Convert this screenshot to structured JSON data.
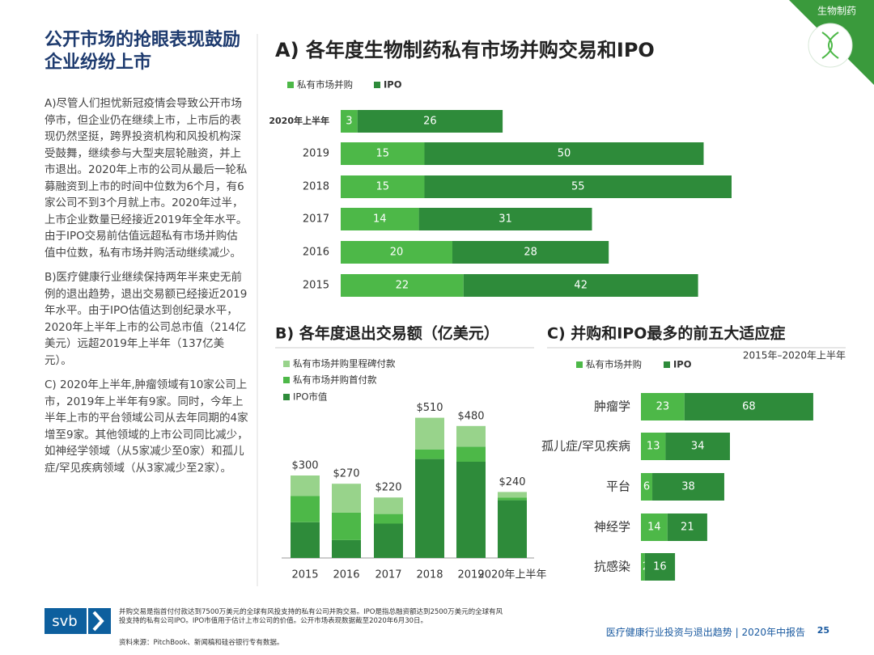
{
  "corner_tag": "生物制药",
  "heading": "公开市场的抢眼表现鼓励企业纷纷上市",
  "paragraphs": [
    "A)尽管人们担忧新冠疫情会导致公开市场停市，但企业仍在继续上市，上市后的表现仍然坚挺，跨界投资机构和风投机构深受鼓舞，继续参与大型夹层轮融资，并上市退出。2020年上市的公司从最后一轮私募融资到上市的时间中位数为6个月，有6家公司不到3个月就上市。2020年过半，上市企业数量已经接近2019年全年水平。由于IPO交易前估值远超私有市场并购估值中位数，私有市场并购活动继续减少。",
    "B)医疗健康行业继续保持两年半来史无前例的退出趋势，退出交易额已经接近2019年水平。由于IPO估值达到创纪录水平，2020年上半年上市的公司总市值（214亿美元）远超2019年上半年（137亿美元）。",
    "C) 2020年上半年,肿瘤领域有10家公司上市，2019年上半年有9家。同时，今年上半年上市的平台领域公司从去年同期的4家增至9家。其他领域的上市公司同比减少，如神经学领域（从5家减少至0家）和孤儿症/罕见疾病领域（从3家减少至2家）。"
  ],
  "chart_data": [
    {
      "type": "hbar_stacked",
      "title": "A) 各年度生物制药私有市场并购交易和IPO",
      "categories": [
        "2020年上半年",
        "2019",
        "2018",
        "2017",
        "2016",
        "2015"
      ],
      "series": [
        {
          "name": "私有市场并购",
          "color": "#4db848",
          "values": [
            3,
            15,
            15,
            14,
            20,
            22
          ]
        },
        {
          "name": "IPO",
          "color": "#2e8b3a",
          "values": [
            26,
            50,
            55,
            31,
            28,
            42
          ]
        }
      ]
    },
    {
      "type": "bar_stacked",
      "title": "B) 各年度退出交易额（亿美元）",
      "categories": [
        "2015",
        "2016",
        "2017",
        "2018",
        "2019",
        "2020年上半年"
      ],
      "series": [
        {
          "name": "IPO市值",
          "color": "#2e8b3a",
          "values": [
            130,
            65,
            125,
            360,
            350,
            210
          ]
        },
        {
          "name": "私有市场并购首付款",
          "color": "#4db848",
          "values": [
            95,
            100,
            35,
            35,
            55,
            10
          ]
        },
        {
          "name": "私有市场并购里程碑付款",
          "color": "#98d38b",
          "values": [
            75,
            105,
            60,
            115,
            75,
            20
          ]
        }
      ],
      "totals": [
        300,
        270,
        220,
        510,
        480,
        240
      ],
      "total_labels": [
        "$300",
        "$270",
        "$220",
        "$510",
        "$480",
        "$240"
      ]
    },
    {
      "type": "hbar_stacked",
      "title": "C) 并购和IPO最多的前五大适应症",
      "subtitle": "2015年–2020年上半年",
      "categories": [
        "肿瘤学",
        "孤儿症/罕见疾病",
        "平台",
        "神经学",
        "抗感染"
      ],
      "series": [
        {
          "name": "私有市场并购",
          "color": "#4db848",
          "values": [
            23,
            13,
            6,
            14,
            2
          ]
        },
        {
          "name": "IPO",
          "color": "#2e8b3a",
          "values": [
            68,
            34,
            38,
            21,
            16
          ]
        }
      ]
    }
  ],
  "logo": "svb",
  "footnote": "并购交易是指首付付款达到7500万美元的全球有风投支持的私有公司并购交易。IPO是指总融资额达到2500万美元的全球有风投支持的私有公司IPO。IPO市值用于估计上市公司的价值。公开市场表现数据截至2020年6月30日。",
  "source": "资料来源：PitchBook、新闻稿和硅谷银行专有数据。",
  "footer_title": "医疗健康行业投资与退出趋势 | 2020年中报告",
  "page_number": "25"
}
